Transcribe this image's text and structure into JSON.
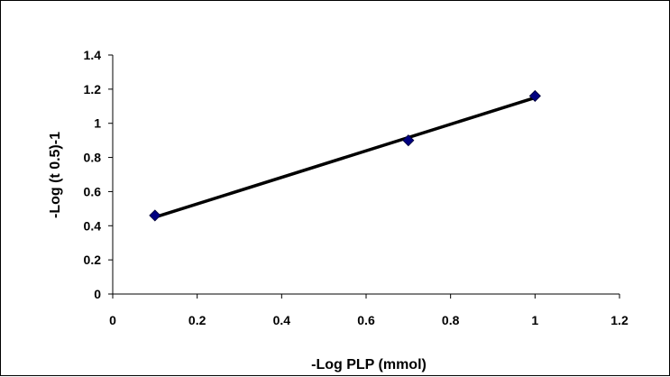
{
  "chart_data": {
    "type": "scatter",
    "xlabel": "-Log PLP (mmol)",
    "ylabel": "-Log (t 0.5)-1",
    "xlim": [
      0,
      1.2
    ],
    "ylim": [
      0,
      1.4
    ],
    "x_ticks": [
      0,
      0.2,
      0.4,
      0.6,
      0.8,
      1,
      1.2
    ],
    "y_ticks": [
      0,
      0.2,
      0.4,
      0.6,
      0.8,
      1,
      1.2,
      1.4
    ],
    "x_tick_labels": [
      "0",
      "0.2",
      "0.4",
      "0.6",
      "0.8",
      "1",
      "1.2"
    ],
    "y_tick_labels": [
      "0",
      "0.2",
      "0.4",
      "0.6",
      "0.8",
      "1",
      "1.2",
      "1.4"
    ],
    "grid": false,
    "legend": "none",
    "series": [
      {
        "points": [
          {
            "x": 0.1,
            "y": 0.46
          },
          {
            "x": 0.7,
            "y": 0.9
          },
          {
            "x": 1.0,
            "y": 1.16
          }
        ],
        "marker": "diamond",
        "marker_color": "#000080"
      }
    ],
    "trendline": {
      "type": "linear",
      "from": {
        "x": 0.1,
        "y": 0.45
      },
      "to": {
        "x": 1.0,
        "y": 1.15
      },
      "color": "#000000"
    }
  }
}
